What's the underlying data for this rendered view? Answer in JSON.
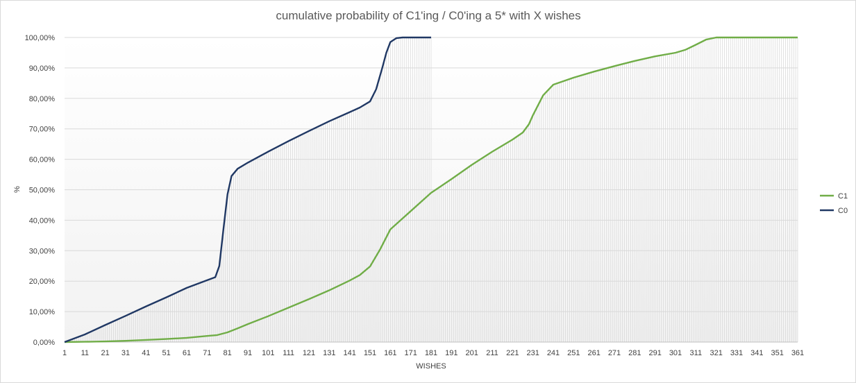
{
  "chart_data": {
    "type": "line",
    "title": "cumulative  probability  of C1'ing / C0'ing a 5* with X wishes",
    "xlabel": "WISHES",
    "ylabel": "%",
    "xlim": [
      1,
      361
    ],
    "ylim": [
      0,
      100
    ],
    "x_ticks": [
      "1",
      "11",
      "21",
      "31",
      "41",
      "51",
      "61",
      "71",
      "81",
      "91",
      "101",
      "111",
      "121",
      "131",
      "141",
      "151",
      "161",
      "171",
      "181",
      "191",
      "201",
      "211",
      "221",
      "231",
      "241",
      "251",
      "261",
      "271",
      "281",
      "291",
      "301",
      "311",
      "321",
      "331",
      "341",
      "351",
      "361"
    ],
    "y_ticks": [
      "0,00%",
      "10,00%",
      "20,00%",
      "30,00%",
      "40,00%",
      "50,00%",
      "60,00%",
      "70,00%",
      "80,00%",
      "90,00%",
      "100,00%"
    ],
    "grid": true,
    "legend_position": "right",
    "series": [
      {
        "name": "C1",
        "color": "#70ad47",
        "points": [
          [
            1,
            0
          ],
          [
            11,
            0.1
          ],
          [
            21,
            0.2
          ],
          [
            31,
            0.4
          ],
          [
            41,
            0.7
          ],
          [
            51,
            1.0
          ],
          [
            61,
            1.4
          ],
          [
            71,
            2.0
          ],
          [
            76,
            2.3
          ],
          [
            81,
            3.2
          ],
          [
            86,
            4.5
          ],
          [
            91,
            5.9
          ],
          [
            101,
            8.5
          ],
          [
            111,
            11.3
          ],
          [
            121,
            14.1
          ],
          [
            131,
            17.0
          ],
          [
            141,
            20.2
          ],
          [
            146,
            22.0
          ],
          [
            151,
            24.8
          ],
          [
            156,
            30.5
          ],
          [
            161,
            37.0
          ],
          [
            166,
            40.0
          ],
          [
            171,
            43.0
          ],
          [
            181,
            49.0
          ],
          [
            191,
            53.5
          ],
          [
            201,
            58.2
          ],
          [
            211,
            62.5
          ],
          [
            221,
            66.5
          ],
          [
            226,
            68.8
          ],
          [
            229,
            71.5
          ],
          [
            231,
            74.5
          ],
          [
            236,
            81.0
          ],
          [
            241,
            84.5
          ],
          [
            251,
            86.8
          ],
          [
            261,
            88.8
          ],
          [
            271,
            90.6
          ],
          [
            281,
            92.3
          ],
          [
            291,
            93.8
          ],
          [
            301,
            95.0
          ],
          [
            306,
            96.0
          ],
          [
            311,
            97.6
          ],
          [
            316,
            99.3
          ],
          [
            321,
            100
          ],
          [
            361,
            100
          ]
        ]
      },
      {
        "name": "C0",
        "color": "#203864",
        "points": [
          [
            1,
            0
          ],
          [
            11,
            2.5
          ],
          [
            21,
            5.6
          ],
          [
            31,
            8.6
          ],
          [
            41,
            11.7
          ],
          [
            51,
            14.7
          ],
          [
            61,
            17.8
          ],
          [
            71,
            20.3
          ],
          [
            75,
            21.3
          ],
          [
            77,
            25.0
          ],
          [
            79,
            37.0
          ],
          [
            81,
            48.5
          ],
          [
            83,
            54.5
          ],
          [
            86,
            56.9
          ],
          [
            91,
            58.9
          ],
          [
            101,
            62.5
          ],
          [
            111,
            66.0
          ],
          [
            121,
            69.3
          ],
          [
            131,
            72.5
          ],
          [
            141,
            75.5
          ],
          [
            146,
            77.0
          ],
          [
            151,
            79.0
          ],
          [
            154,
            83.0
          ],
          [
            157,
            90.0
          ],
          [
            159,
            95.0
          ],
          [
            161,
            98.5
          ],
          [
            164,
            99.8
          ],
          [
            167,
            100
          ],
          [
            181,
            100
          ]
        ]
      }
    ]
  }
}
